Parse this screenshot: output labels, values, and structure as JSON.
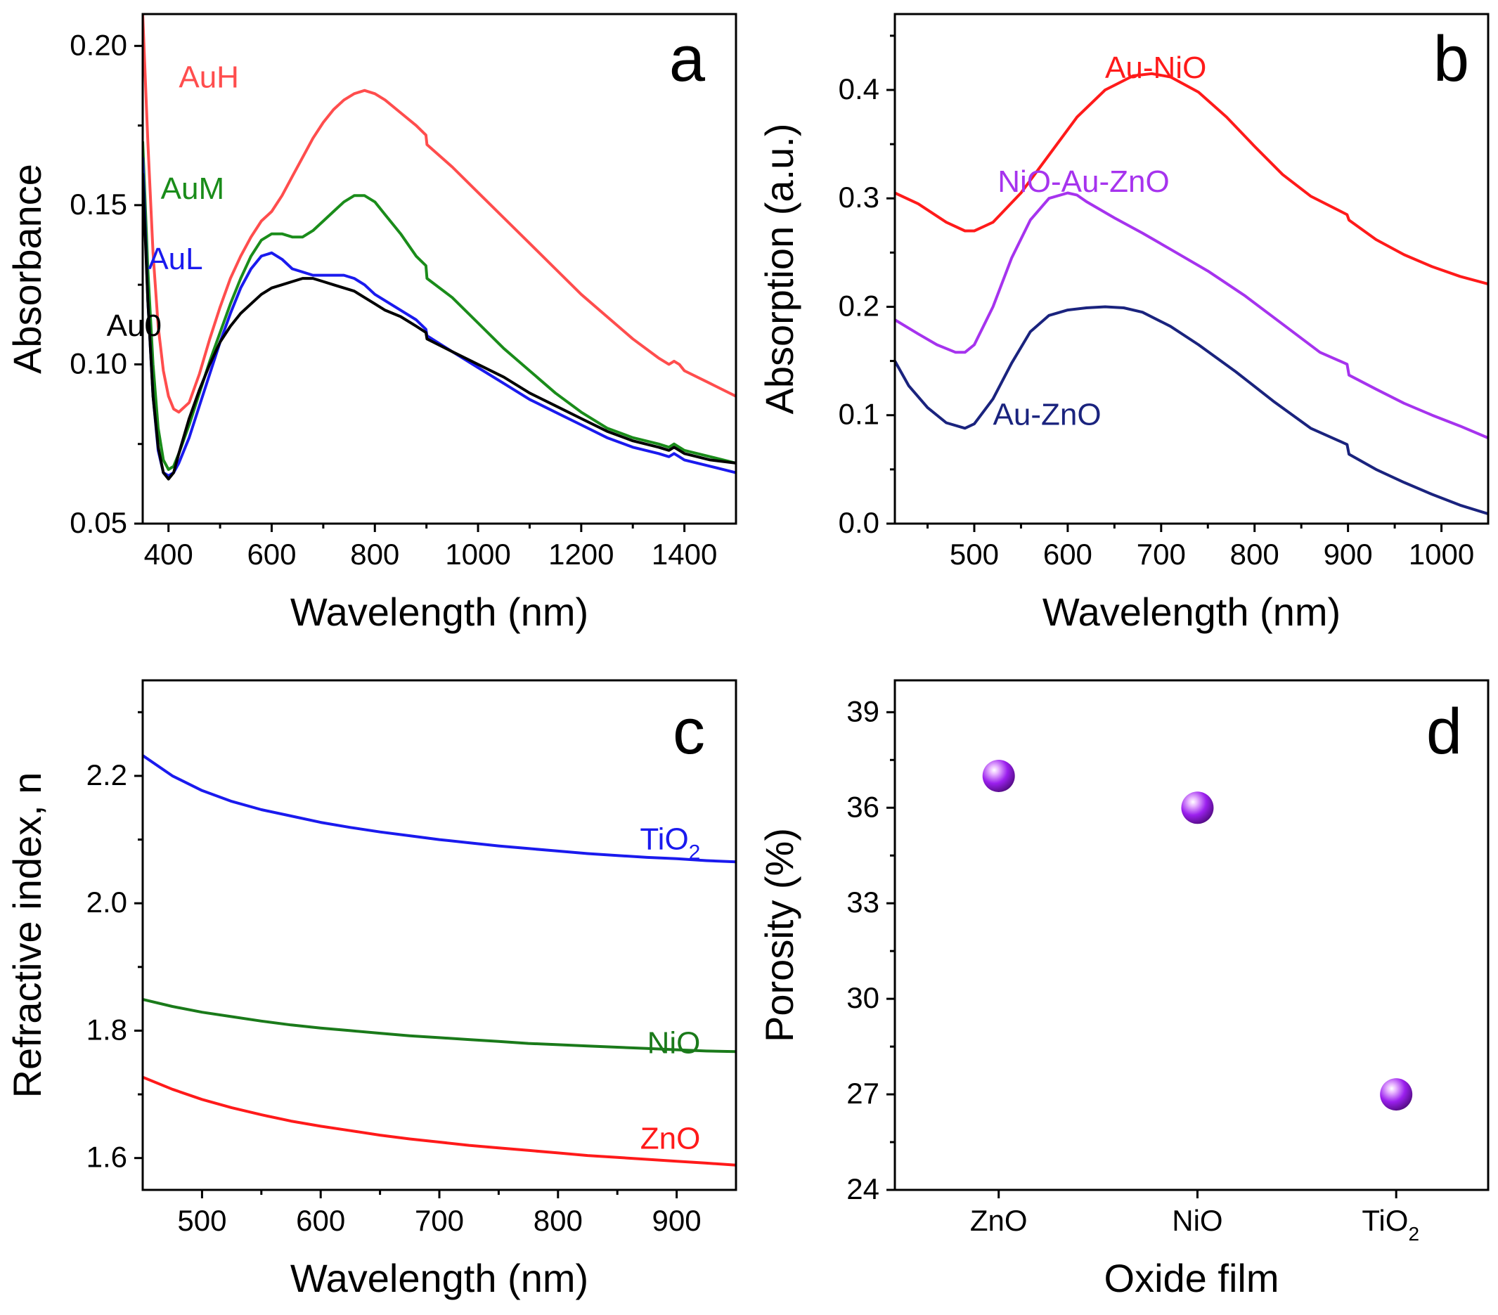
{
  "figure": {
    "panels": [
      "a",
      "b",
      "c",
      "d"
    ]
  },
  "chart_data": [
    {
      "id": "a",
      "type": "line",
      "panel_label": "a",
      "xlabel": "Wavelength (nm)",
      "ylabel": "Absorbance",
      "xlim": [
        350,
        1500
      ],
      "ylim": [
        0.05,
        0.21
      ],
      "xticks": [
        400,
        600,
        800,
        1000,
        1200,
        1400
      ],
      "yticks": [
        0.05,
        0.1,
        0.15,
        0.2
      ],
      "ytick_labels": [
        "0.05",
        "0.10",
        "0.15",
        "0.20"
      ],
      "series": [
        {
          "name": "AuH",
          "color": "#ff4d4d",
          "label_at": [
            420,
            0.19
          ],
          "x": [
            350,
            360,
            370,
            380,
            390,
            400,
            410,
            420,
            440,
            460,
            480,
            500,
            520,
            540,
            560,
            580,
            600,
            620,
            640,
            660,
            680,
            700,
            720,
            740,
            760,
            780,
            800,
            820,
            850,
            880,
            899,
            901,
            950,
            1000,
            1050,
            1100,
            1150,
            1200,
            1250,
            1300,
            1350,
            1370,
            1380,
            1390,
            1400,
            1450,
            1500
          ],
          "y": [
            0.21,
            0.17,
            0.135,
            0.112,
            0.098,
            0.09,
            0.086,
            0.085,
            0.088,
            0.097,
            0.108,
            0.118,
            0.127,
            0.134,
            0.14,
            0.145,
            0.148,
            0.153,
            0.159,
            0.165,
            0.171,
            0.176,
            0.18,
            0.183,
            0.185,
            0.186,
            0.185,
            0.183,
            0.179,
            0.175,
            0.172,
            0.169,
            0.162,
            0.154,
            0.146,
            0.138,
            0.13,
            0.122,
            0.115,
            0.108,
            0.102,
            0.1,
            0.101,
            0.1,
            0.098,
            0.094,
            0.09
          ]
        },
        {
          "name": "AuM",
          "color": "#1a8c1a",
          "label_at": [
            385,
            0.155
          ],
          "x": [
            350,
            360,
            370,
            380,
            390,
            400,
            410,
            420,
            440,
            460,
            480,
            500,
            520,
            540,
            560,
            580,
            600,
            620,
            640,
            660,
            680,
            700,
            720,
            740,
            760,
            780,
            800,
            820,
            850,
            880,
            899,
            901,
            950,
            1000,
            1050,
            1100,
            1150,
            1200,
            1250,
            1300,
            1350,
            1370,
            1380,
            1390,
            1400,
            1450,
            1500
          ],
          "y": [
            0.17,
            0.13,
            0.1,
            0.08,
            0.07,
            0.067,
            0.068,
            0.072,
            0.081,
            0.091,
            0.101,
            0.11,
            0.119,
            0.127,
            0.134,
            0.139,
            0.141,
            0.141,
            0.14,
            0.14,
            0.142,
            0.145,
            0.148,
            0.151,
            0.153,
            0.153,
            0.151,
            0.147,
            0.141,
            0.134,
            0.131,
            0.127,
            0.121,
            0.113,
            0.105,
            0.098,
            0.091,
            0.085,
            0.08,
            0.077,
            0.075,
            0.074,
            0.075,
            0.074,
            0.073,
            0.071,
            0.069
          ]
        },
        {
          "name": "AuL",
          "color": "#1a1aee",
          "label_at": [
            360,
            0.133
          ],
          "x": [
            350,
            360,
            370,
            380,
            390,
            400,
            410,
            420,
            440,
            460,
            480,
            500,
            520,
            540,
            560,
            580,
            600,
            620,
            640,
            660,
            680,
            700,
            720,
            740,
            760,
            780,
            800,
            820,
            850,
            880,
            899,
            901,
            950,
            1000,
            1050,
            1100,
            1150,
            1200,
            1250,
            1300,
            1350,
            1370,
            1380,
            1390,
            1400,
            1450,
            1500
          ],
          "y": [
            0.165,
            0.12,
            0.09,
            0.073,
            0.066,
            0.065,
            0.066,
            0.069,
            0.077,
            0.087,
            0.097,
            0.107,
            0.116,
            0.124,
            0.13,
            0.134,
            0.135,
            0.133,
            0.13,
            0.129,
            0.128,
            0.128,
            0.128,
            0.128,
            0.127,
            0.125,
            0.122,
            0.12,
            0.117,
            0.114,
            0.111,
            0.109,
            0.104,
            0.099,
            0.094,
            0.089,
            0.085,
            0.081,
            0.077,
            0.074,
            0.072,
            0.071,
            0.072,
            0.071,
            0.07,
            0.068,
            0.066
          ]
        },
        {
          "name": "Au0",
          "color": "#000000",
          "label_at": [
            280,
            0.112
          ],
          "x": [
            350,
            360,
            370,
            380,
            390,
            400,
            410,
            420,
            440,
            460,
            480,
            500,
            520,
            540,
            560,
            580,
            600,
            620,
            640,
            660,
            680,
            700,
            720,
            740,
            760,
            780,
            800,
            820,
            850,
            880,
            899,
            901,
            950,
            1000,
            1050,
            1100,
            1150,
            1200,
            1250,
            1300,
            1350,
            1370,
            1380,
            1390,
            1400,
            1450,
            1500
          ],
          "y": [
            0.16,
            0.12,
            0.09,
            0.074,
            0.066,
            0.064,
            0.066,
            0.072,
            0.083,
            0.092,
            0.1,
            0.107,
            0.112,
            0.116,
            0.119,
            0.122,
            0.124,
            0.125,
            0.126,
            0.127,
            0.127,
            0.126,
            0.125,
            0.124,
            0.123,
            0.121,
            0.119,
            0.117,
            0.115,
            0.112,
            0.11,
            0.108,
            0.104,
            0.1,
            0.096,
            0.091,
            0.087,
            0.083,
            0.079,
            0.076,
            0.074,
            0.073,
            0.074,
            0.073,
            0.072,
            0.07,
            0.069
          ]
        }
      ]
    },
    {
      "id": "b",
      "type": "line",
      "panel_label": "b",
      "xlabel": "Wavelength (nm)",
      "ylabel": "Absorption (a.u.)",
      "xlim": [
        415,
        1050
      ],
      "ylim": [
        0.0,
        0.47
      ],
      "xticks": [
        500,
        600,
        700,
        800,
        900,
        1000
      ],
      "yticks": [
        0.0,
        0.1,
        0.2,
        0.3,
        0.4
      ],
      "ytick_labels": [
        "0.0",
        "0.1",
        "0.2",
        "0.3",
        "0.4"
      ],
      "series": [
        {
          "name": "Au-NiO",
          "color": "#ff1a1a",
          "label_at": [
            640,
            0.42
          ],
          "x": [
            415,
            440,
            470,
            490,
            500,
            520,
            550,
            580,
            610,
            640,
            670,
            690,
            710,
            740,
            770,
            800,
            830,
            860,
            899,
            901,
            930,
            960,
            990,
            1020,
            1050
          ],
          "y": [
            0.305,
            0.295,
            0.278,
            0.27,
            0.27,
            0.278,
            0.305,
            0.34,
            0.375,
            0.4,
            0.413,
            0.415,
            0.412,
            0.398,
            0.375,
            0.348,
            0.322,
            0.302,
            0.285,
            0.28,
            0.262,
            0.248,
            0.237,
            0.228,
            0.221
          ]
        },
        {
          "name": "NiO-Au-ZnO",
          "color": "#a633ee",
          "label_at": [
            525,
            0.315
          ],
          "x": [
            415,
            440,
            460,
            480,
            490,
            500,
            520,
            540,
            560,
            580,
            600,
            610,
            620,
            650,
            680,
            710,
            750,
            790,
            830,
            870,
            899,
            901,
            930,
            960,
            990,
            1020,
            1050
          ],
          "y": [
            0.188,
            0.175,
            0.165,
            0.158,
            0.158,
            0.165,
            0.2,
            0.245,
            0.28,
            0.3,
            0.305,
            0.303,
            0.297,
            0.282,
            0.268,
            0.253,
            0.233,
            0.21,
            0.184,
            0.158,
            0.147,
            0.137,
            0.124,
            0.111,
            0.1,
            0.09,
            0.079
          ]
        },
        {
          "name": "Au-ZnO",
          "color": "#1a237e",
          "label_at": [
            520,
            0.1
          ],
          "x": [
            415,
            430,
            450,
            470,
            490,
            500,
            520,
            540,
            560,
            580,
            600,
            620,
            640,
            660,
            680,
            710,
            740,
            780,
            820,
            860,
            899,
            901,
            930,
            960,
            990,
            1020,
            1050
          ],
          "y": [
            0.15,
            0.127,
            0.107,
            0.093,
            0.088,
            0.092,
            0.115,
            0.148,
            0.177,
            0.192,
            0.197,
            0.199,
            0.2,
            0.199,
            0.195,
            0.182,
            0.165,
            0.14,
            0.113,
            0.088,
            0.073,
            0.064,
            0.05,
            0.038,
            0.027,
            0.017,
            0.009
          ]
        }
      ]
    },
    {
      "id": "c",
      "type": "line",
      "panel_label": "c",
      "xlabel": "Wavelength (nm)",
      "ylabel": "Refractive index, n",
      "xlim": [
        450,
        950
      ],
      "ylim": [
        1.55,
        2.35
      ],
      "xticks": [
        500,
        600,
        700,
        800,
        900
      ],
      "yticks": [
        1.6,
        1.8,
        2.0,
        2.2
      ],
      "ytick_labels": [
        "1.6",
        "1.8",
        "2.0",
        "2.2"
      ],
      "series": [
        {
          "name": "TiO",
          "sub": "2",
          "color": "#1a1aee",
          "label_at": [
            920,
            2.1
          ],
          "x": [
            450,
            475,
            500,
            525,
            550,
            575,
            600,
            625,
            650,
            675,
            700,
            725,
            750,
            775,
            800,
            825,
            850,
            875,
            900,
            925,
            950
          ],
          "y": [
            2.232,
            2.2,
            2.177,
            2.16,
            2.147,
            2.137,
            2.127,
            2.119,
            2.112,
            2.106,
            2.1,
            2.095,
            2.09,
            2.086,
            2.082,
            2.078,
            2.075,
            2.072,
            2.07,
            2.067,
            2.065
          ]
        },
        {
          "name": "NiO",
          "color": "#1a7a1a",
          "label_at": [
            920,
            1.78
          ],
          "x": [
            450,
            475,
            500,
            525,
            550,
            575,
            600,
            625,
            650,
            675,
            700,
            725,
            750,
            775,
            800,
            825,
            850,
            875,
            900,
            925,
            950
          ],
          "y": [
            1.849,
            1.838,
            1.829,
            1.822,
            1.815,
            1.809,
            1.804,
            1.8,
            1.796,
            1.792,
            1.789,
            1.786,
            1.783,
            1.78,
            1.778,
            1.776,
            1.774,
            1.772,
            1.77,
            1.768,
            1.767
          ]
        },
        {
          "name": "ZnO",
          "color": "#ff1a1a",
          "label_at": [
            920,
            1.63
          ],
          "x": [
            450,
            475,
            500,
            525,
            550,
            575,
            600,
            625,
            650,
            675,
            700,
            725,
            750,
            775,
            800,
            825,
            850,
            875,
            900,
            925,
            950
          ],
          "y": [
            1.727,
            1.708,
            1.692,
            1.679,
            1.668,
            1.658,
            1.65,
            1.643,
            1.636,
            1.63,
            1.625,
            1.62,
            1.616,
            1.612,
            1.608,
            1.604,
            1.601,
            1.598,
            1.595,
            1.592,
            1.589
          ]
        }
      ]
    },
    {
      "id": "d",
      "type": "scatter",
      "panel_label": "d",
      "xlabel": "Oxide film",
      "ylabel": "Porosity (%)",
      "ylim": [
        24,
        40
      ],
      "yticks": [
        24,
        27,
        30,
        33,
        36,
        39
      ],
      "categories": [
        {
          "label": "ZnO",
          "sub": ""
        },
        {
          "label": "NiO",
          "sub": ""
        },
        {
          "label": "TiO",
          "sub": "2"
        }
      ],
      "values": [
        37,
        36,
        27
      ],
      "marker_color": "#9b20ee"
    }
  ]
}
